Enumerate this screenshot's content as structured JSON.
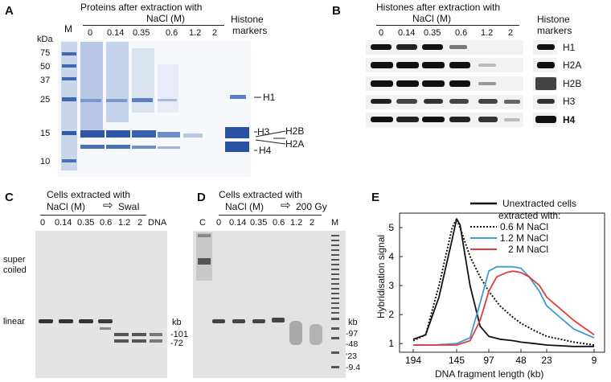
{
  "panelA": {
    "letter": "A",
    "title": "Proteins after extraction with",
    "salt_label": "NaCl (M)",
    "marker_lane": "M",
    "kda": "kDa",
    "lanes": [
      "0",
      "0.14",
      "0.35",
      "0.6",
      "1.2",
      "2"
    ],
    "histone_markers": [
      "Histone",
      "markers"
    ],
    "mw": [
      "75",
      "50",
      "37",
      "25",
      "15",
      "10"
    ],
    "bands": [
      "H1",
      "H3",
      "H4",
      "H2B",
      "H2A"
    ]
  },
  "panelB": {
    "letter": "B",
    "title": "Histones after extraction with",
    "salt_label": "NaCl (M)",
    "lanes": [
      "0",
      "0.14",
      "0.35",
      "0.6",
      "1.2",
      "2"
    ],
    "histone_markers": [
      "Histone",
      "markers"
    ],
    "rows": [
      "H1",
      "H2A",
      "H2B",
      "H3",
      "H4"
    ]
  },
  "panelC": {
    "letter": "C",
    "title": "Cells extracted with",
    "salt_label": "NaCl (M)",
    "enzyme": "SwaI",
    "lanes": [
      "0",
      "0.14",
      "0.35",
      "0.6",
      "1.2",
      "2",
      "DNA"
    ],
    "label_supercoiled": [
      "super",
      "coiled"
    ],
    "label_linear": "linear",
    "kb": "kb",
    "sizes": [
      "101",
      "72"
    ]
  },
  "panelD": {
    "letter": "D",
    "title": "Cells extracted with",
    "salt_label": "NaCl (M)",
    "treatment": "200 Gy",
    "control": "C",
    "marker": "M",
    "lanes": [
      "0",
      "0.14",
      "0.35",
      "0.6",
      "1.2",
      "2"
    ],
    "kb": "kb",
    "sizes": [
      "97",
      "48",
      "23",
      "9.4"
    ]
  },
  "panelE": {
    "letter": "E",
    "legend": {
      "unextracted": "Unextracted cells",
      "extracted": "extracted with:",
      "s06": "0.6 M NaCl",
      "s12": "1.2 M NaCl",
      "s2": "2 M NaCl"
    },
    "colors": {
      "unextracted": "#111111",
      "s06": "#111111",
      "s12": "#3d9ad4",
      "s2": "#e03c3c"
    }
  },
  "chart_data": {
    "type": "line",
    "xlabel": "DNA fragment length (kb)",
    "ylabel": "Hybridisation signal",
    "x_ticks": [
      "194",
      "145",
      "97",
      "48",
      "23",
      "9"
    ],
    "y_ticks": [
      "1",
      "2",
      "3",
      "4",
      "5"
    ],
    "ylim": [
      0.7,
      5.5
    ],
    "x_order": "decreasing fragment length",
    "series": [
      {
        "name": "Unextracted cells",
        "style": "solid",
        "color": "#111111",
        "x": [
          194,
          180,
          165,
          150,
          145,
          140,
          125,
          110,
          97,
          80,
          60,
          48,
          35,
          23,
          15,
          9
        ],
        "y": [
          1.15,
          1.3,
          2.6,
          4.6,
          5.3,
          5.1,
          3.0,
          1.6,
          1.25,
          1.15,
          1.1,
          1.05,
          1.0,
          0.95,
          0.9,
          0.9
        ]
      },
      {
        "name": "0.6 M NaCl",
        "style": "dotted",
        "color": "#111111",
        "x": [
          194,
          180,
          165,
          150,
          145,
          140,
          125,
          110,
          97,
          80,
          60,
          48,
          35,
          23,
          15,
          9
        ],
        "y": [
          1.1,
          1.3,
          3.0,
          5.0,
          5.3,
          5.0,
          4.0,
          3.3,
          2.8,
          2.3,
          1.9,
          1.7,
          1.45,
          1.25,
          1.05,
          0.95
        ]
      },
      {
        "name": "1.2 M NaCl",
        "style": "solid",
        "color": "#3d9ad4",
        "x": [
          194,
          170,
          145,
          125,
          110,
          97,
          85,
          70,
          60,
          48,
          40,
          30,
          23,
          15,
          9
        ],
        "y": [
          0.95,
          0.95,
          1.0,
          1.2,
          2.4,
          3.5,
          3.65,
          3.65,
          3.65,
          3.6,
          3.3,
          2.8,
          2.3,
          1.5,
          1.2
        ]
      },
      {
        "name": "2 M NaCl",
        "style": "solid",
        "color": "#e03c3c",
        "x": [
          194,
          170,
          145,
          125,
          110,
          97,
          85,
          70,
          60,
          48,
          40,
          30,
          23,
          15,
          9
        ],
        "y": [
          0.95,
          0.95,
          0.95,
          1.1,
          1.8,
          2.8,
          3.3,
          3.45,
          3.5,
          3.45,
          3.3,
          3.0,
          2.6,
          1.8,
          1.3
        ]
      }
    ]
  }
}
